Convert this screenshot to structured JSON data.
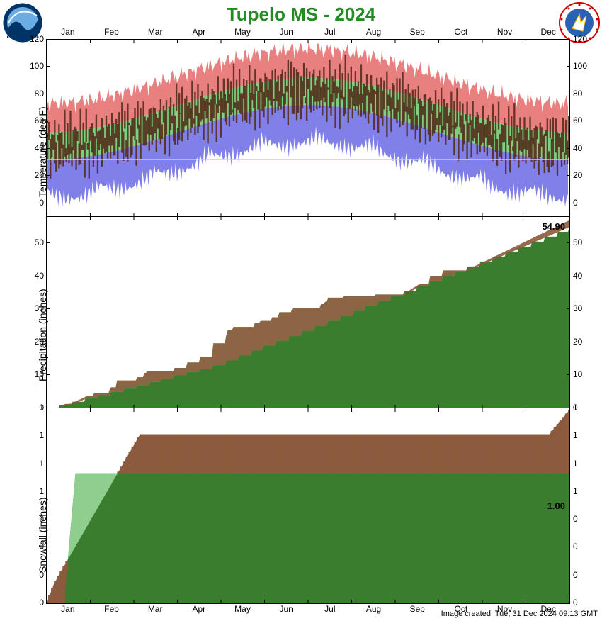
{
  "title": "Tupelo MS - 2024",
  "months": [
    "Jan",
    "Feb",
    "Mar",
    "Apr",
    "May",
    "Jun",
    "Jul",
    "Aug",
    "Sep",
    "Oct",
    "Nov",
    "Dec"
  ],
  "created": "Image created: Tue, 31 Dec 2024 09:13 GMT",
  "colors": {
    "title": "#228B22",
    "axis": "#000000",
    "record_high": "#e88080",
    "normal": "#7ed07e",
    "record_low": "#8080e8",
    "observed": "#502818",
    "actual_area": "#8fce8f",
    "normal_area": "#3b7d2e",
    "actual_snow": "#8c5a3c"
  },
  "temperature": {
    "ylabel": "Temperature (deg F)",
    "ylim": [
      -10,
      120
    ],
    "yticks": [
      0,
      20,
      40,
      60,
      80,
      100,
      120
    ],
    "freeze_line": 32,
    "record_high": [
      72,
      74,
      78,
      80,
      82,
      86,
      88,
      90,
      92,
      96,
      98,
      100,
      102,
      104,
      106,
      108,
      108,
      107,
      106,
      104,
      100,
      96,
      90,
      84,
      80,
      76,
      74,
      72,
      72,
      72,
      72,
      72,
      72
    ],
    "normal_high": [
      52,
      54,
      58,
      62,
      68,
      74,
      80,
      86,
      90,
      92,
      92,
      91,
      90,
      88,
      84,
      78,
      70,
      62,
      56,
      52,
      50,
      50,
      50,
      50
    ],
    "normal_low": [
      32,
      34,
      38,
      42,
      48,
      56,
      62,
      68,
      72,
      72,
      70,
      66,
      60,
      52,
      44,
      38,
      34,
      32,
      32,
      32,
      32,
      32,
      32,
      32
    ],
    "record_low": [
      -5,
      0,
      5,
      10,
      18,
      26,
      34,
      42,
      50,
      55,
      55,
      50,
      42,
      32,
      22,
      14,
      8,
      2,
      -2,
      -5,
      -5,
      -5,
      -5,
      -5
    ],
    "observed_high": [
      58,
      48,
      70,
      60,
      72,
      56,
      78,
      68,
      80,
      72,
      85,
      78,
      90,
      82,
      94,
      88,
      96,
      90,
      98,
      94,
      100,
      96,
      102,
      98,
      100,
      96,
      98,
      94,
      95,
      90,
      88,
      82,
      80,
      74,
      76,
      70,
      72,
      65,
      68,
      58,
      62
    ],
    "observed_low": [
      28,
      22,
      38,
      30,
      42,
      28,
      48,
      36,
      52,
      40,
      58,
      48,
      64,
      54,
      68,
      58,
      72,
      64,
      74,
      68,
      76,
      70,
      78,
      72,
      76,
      70,
      74,
      68,
      70,
      62,
      64,
      56,
      58,
      50,
      54,
      44,
      48,
      38,
      42,
      30,
      36
    ]
  },
  "precipitation": {
    "ylabel": "Precipitation (inches)",
    "ylim": [
      0,
      58
    ],
    "yticks": [
      0,
      10,
      20,
      30,
      40,
      50
    ],
    "normal_cum": [
      0,
      1,
      2,
      3,
      4,
      5,
      6,
      7,
      8,
      9,
      10,
      11,
      12,
      13,
      14.5,
      16,
      17.5,
      19,
      20.5,
      22,
      23.5,
      25,
      26.5,
      28,
      29.5,
      31,
      32.5,
      34,
      35.5,
      37,
      38.5,
      40,
      41.5,
      43,
      44.5,
      46,
      47.5,
      49,
      50.5,
      52,
      53.5,
      54.9
    ],
    "actual_cum": [
      0,
      1.5,
      3,
      5,
      7,
      9,
      11,
      12,
      13,
      14,
      15,
      16,
      18,
      22,
      25,
      26,
      27,
      28,
      30,
      31,
      32,
      33,
      34,
      34.5,
      35,
      35.5,
      36,
      37,
      38,
      39,
      41,
      43,
      44,
      45,
      45.5,
      46,
      47,
      48,
      50,
      52,
      55,
      57
    ],
    "annotation": "54.90"
  },
  "snowfall": {
    "ylabel": "Snowfall (inches)",
    "ylim": [
      0,
      1.5
    ],
    "yticks": [
      0,
      0,
      0,
      0,
      1,
      1,
      1,
      1
    ],
    "actual_cum": [
      0,
      0.1,
      0.1,
      0.15,
      0.15,
      0.2,
      0.2,
      0.3,
      0.4,
      0.5,
      0.6,
      0.7,
      0.8,
      0.9,
      1.0,
      1.1,
      1.2,
      1.25,
      1.28,
      1.29,
      1.29,
      1.29,
      1.29,
      1.29,
      1.29,
      1.29,
      1.29,
      1.29,
      1.29,
      1.29,
      1.29,
      1.29,
      1.29,
      1.29,
      1.29,
      1.29,
      1.29,
      1.29,
      1.29,
      1.29,
      1.4,
      1.5
    ],
    "normal_cum": [
      0,
      0,
      0,
      0,
      1,
      1,
      1,
      1,
      1,
      1,
      1,
      1,
      1,
      1,
      1,
      1,
      1,
      1,
      1,
      1,
      1,
      1,
      1,
      1,
      1,
      1,
      1,
      1,
      1,
      1,
      1,
      1,
      1,
      1,
      1,
      1,
      1,
      1,
      1,
      1,
      1,
      1
    ],
    "annotation": "1.00"
  }
}
